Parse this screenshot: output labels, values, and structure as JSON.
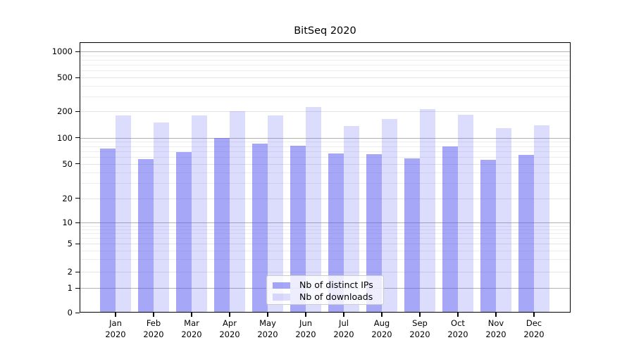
{
  "figure": {
    "title": "BitSeq 2020"
  },
  "colors": {
    "bar_ips": "rgba(80,80,240,0.5)",
    "bar_downloads": "rgba(80,80,240,0.2)",
    "grid_major": "#b2b2b2",
    "grid_minor": "#ededf0",
    "axis": "#000000"
  },
  "legend": {
    "items": [
      {
        "label": "Nb of distinct IPs"
      },
      {
        "label": "Nb of downloads"
      }
    ]
  },
  "axes": {
    "y_ticks": [
      {
        "value": 0,
        "label": "0"
      },
      {
        "value": 1,
        "label": "1"
      },
      {
        "value": 2,
        "label": "2"
      },
      {
        "value": 5,
        "label": "5"
      },
      {
        "value": 10,
        "label": "10"
      },
      {
        "value": 20,
        "label": "20"
      },
      {
        "value": 50,
        "label": "50"
      },
      {
        "value": 100,
        "label": "100"
      },
      {
        "value": 200,
        "label": "200"
      },
      {
        "value": 500,
        "label": "500"
      },
      {
        "value": 1000,
        "label": "1000"
      }
    ],
    "y_major_grid": [
      1,
      10,
      100,
      1000
    ],
    "y_sub_grid": [
      2,
      5,
      20,
      50,
      200,
      500
    ],
    "y_minor_grid": [
      3,
      4,
      6,
      7,
      8,
      9,
      30,
      40,
      60,
      70,
      80,
      90,
      300,
      400,
      600,
      700,
      800,
      900
    ],
    "x_categories": [
      {
        "month": "Jan",
        "year": "2020"
      },
      {
        "month": "Feb",
        "year": "2020"
      },
      {
        "month": "Mar",
        "year": "2020"
      },
      {
        "month": "Apr",
        "year": "2020"
      },
      {
        "month": "May",
        "year": "2020"
      },
      {
        "month": "Jun",
        "year": "2020"
      },
      {
        "month": "Jul",
        "year": "2020"
      },
      {
        "month": "Aug",
        "year": "2020"
      },
      {
        "month": "Sep",
        "year": "2020"
      },
      {
        "month": "Oct",
        "year": "2020"
      },
      {
        "month": "Nov",
        "year": "2020"
      },
      {
        "month": "Dec",
        "year": "2020"
      }
    ]
  },
  "chart_data": {
    "type": "bar",
    "title": "BitSeq 2020",
    "categories": [
      "Jan 2020",
      "Feb 2020",
      "Mar 2020",
      "Apr 2020",
      "May 2020",
      "Jun 2020",
      "Jul 2020",
      "Aug 2020",
      "Sep 2020",
      "Oct 2020",
      "Nov 2020",
      "Dec 2020"
    ],
    "series": [
      {
        "name": "Nb of distinct IPs",
        "color": "rgba(80,80,240,0.5)",
        "values": [
          75,
          57,
          69,
          100,
          86,
          81,
          66,
          65,
          58,
          80,
          56,
          64
        ]
      },
      {
        "name": "Nb of downloads",
        "color": "rgba(80,80,240,0.2)",
        "values": [
          180,
          150,
          180,
          200,
          180,
          225,
          136,
          163,
          212,
          182,
          128,
          139
        ]
      }
    ],
    "xlabel": "",
    "ylabel": "",
    "yscale": "symlog",
    "y_ticks": [
      0,
      1,
      2,
      5,
      10,
      20,
      50,
      100,
      200,
      500,
      1000
    ],
    "ylim": [
      0,
      1000
    ],
    "grid": true,
    "legend_position": "lower center"
  }
}
